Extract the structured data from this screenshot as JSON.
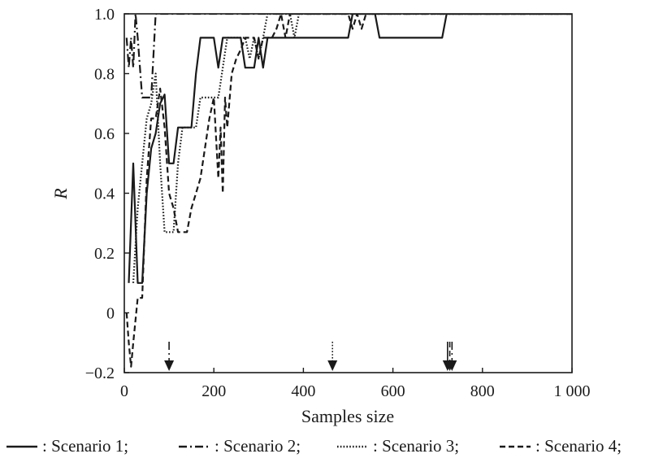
{
  "chart_data": {
    "type": "line",
    "xlabel": "Samples size",
    "ylabel": "R",
    "xlim": [
      0,
      1000
    ],
    "ylim": [
      -0.2,
      1.0
    ],
    "x_ticks": [
      0,
      200,
      400,
      600,
      800,
      1000
    ],
    "x_tick_labels": [
      "0",
      "200",
      "400",
      "600",
      "800",
      "1 000"
    ],
    "y_ticks": [
      -0.2,
      0,
      0.2,
      0.4,
      0.6,
      0.8,
      1.0
    ],
    "y_tick_labels": [
      "−0.2",
      "0",
      "0.2",
      "0.4",
      "0.6",
      "0.8",
      "1.0"
    ],
    "grid": false,
    "legend_position": "bottom",
    "series": [
      {
        "name": "Scenario 1",
        "legend_label": ": Scenario 1;",
        "style": "solid",
        "x": [
          10,
          20,
          30,
          40,
          50,
          60,
          70,
          80,
          90,
          100,
          110,
          120,
          130,
          140,
          150,
          160,
          170,
          180,
          190,
          200,
          210,
          220,
          230,
          240,
          250,
          260,
          270,
          280,
          290,
          300,
          310,
          320,
          330,
          340,
          350,
          360,
          500,
          510,
          520,
          560,
          570,
          700,
          710,
          720,
          730,
          1000
        ],
        "y": [
          0.1,
          0.5,
          0.1,
          0.1,
          0.4,
          0.55,
          0.6,
          0.7,
          0.73,
          0.5,
          0.5,
          0.62,
          0.62,
          0.62,
          0.62,
          0.8,
          0.92,
          0.92,
          0.92,
          0.92,
          0.82,
          0.92,
          0.92,
          0.92,
          0.92,
          0.92,
          0.82,
          0.82,
          0.82,
          0.92,
          0.82,
          0.92,
          0.92,
          0.92,
          0.92,
          0.92,
          0.92,
          1.0,
          1.0,
          1.0,
          0.92,
          0.92,
          0.92,
          1.0,
          1.0,
          1.0
        ]
      },
      {
        "name": "Scenario 2",
        "legend_label": ": Scenario 2;",
        "style": "dashdot",
        "x": [
          5,
          10,
          15,
          20,
          25,
          30,
          40,
          50,
          60,
          70,
          80,
          90,
          1000
        ],
        "y": [
          0.92,
          0.82,
          0.92,
          0.82,
          1.0,
          0.92,
          0.72,
          0.72,
          0.72,
          1.0,
          1.0,
          1.0,
          1.0
        ],
        "marker_x": 100
      },
      {
        "name": "Scenario 3",
        "legend_label": ": Scenario 3;",
        "style": "dotted",
        "x": [
          20,
          30,
          40,
          50,
          60,
          70,
          80,
          90,
          100,
          110,
          120,
          130,
          140,
          150,
          160,
          170,
          180,
          190,
          200,
          210,
          220,
          230,
          240,
          250,
          260,
          270,
          280,
          290,
          300,
          310,
          320,
          330,
          340,
          350,
          360,
          370,
          380,
          390,
          1000
        ],
        "y": [
          0.1,
          0.35,
          0.5,
          0.65,
          0.7,
          0.8,
          0.5,
          0.27,
          0.27,
          0.27,
          0.5,
          0.62,
          0.62,
          0.62,
          0.62,
          0.72,
          0.72,
          0.72,
          0.72,
          0.72,
          0.82,
          0.92,
          0.92,
          0.92,
          0.92,
          0.92,
          0.85,
          0.92,
          0.85,
          0.92,
          1.0,
          1.0,
          1.0,
          1.0,
          1.0,
          1.0,
          0.92,
          1.0,
          1.0
        ],
        "marker_x": 465
      },
      {
        "name": "Scenario 4",
        "legend_label": ": Scenario 4;",
        "style": "dashed",
        "x": [
          5,
          10,
          15,
          20,
          30,
          40,
          50,
          60,
          70,
          80,
          90,
          100,
          110,
          120,
          130,
          140,
          150,
          160,
          170,
          180,
          190,
          200,
          210,
          215,
          220,
          225,
          230,
          240,
          250,
          260,
          270,
          280,
          290,
          300,
          310,
          320,
          330,
          340,
          350,
          360,
          370,
          380,
          400,
          420,
          440,
          460,
          480,
          500,
          510,
          520,
          530,
          540,
          1000
        ],
        "y": [
          0.0,
          -0.1,
          -0.18,
          -0.1,
          0.05,
          0.05,
          0.45,
          0.65,
          0.65,
          0.75,
          0.62,
          0.4,
          0.35,
          0.27,
          0.27,
          0.27,
          0.35,
          0.4,
          0.45,
          0.55,
          0.65,
          0.72,
          0.45,
          0.62,
          0.4,
          0.72,
          0.62,
          0.8,
          0.85,
          0.88,
          0.92,
          0.92,
          0.92,
          0.85,
          0.92,
          0.92,
          0.92,
          0.95,
          1.0,
          0.92,
          1.0,
          1.0,
          1.0,
          1.0,
          1.0,
          1.0,
          1.0,
          1.0,
          0.95,
          1.0,
          0.95,
          1.0,
          1.0
        ],
        "marker_x": 727
      }
    ],
    "extra_markers": [
      {
        "x": 722,
        "style": "solid"
      },
      {
        "x": 732,
        "style": "dashdot"
      }
    ]
  }
}
